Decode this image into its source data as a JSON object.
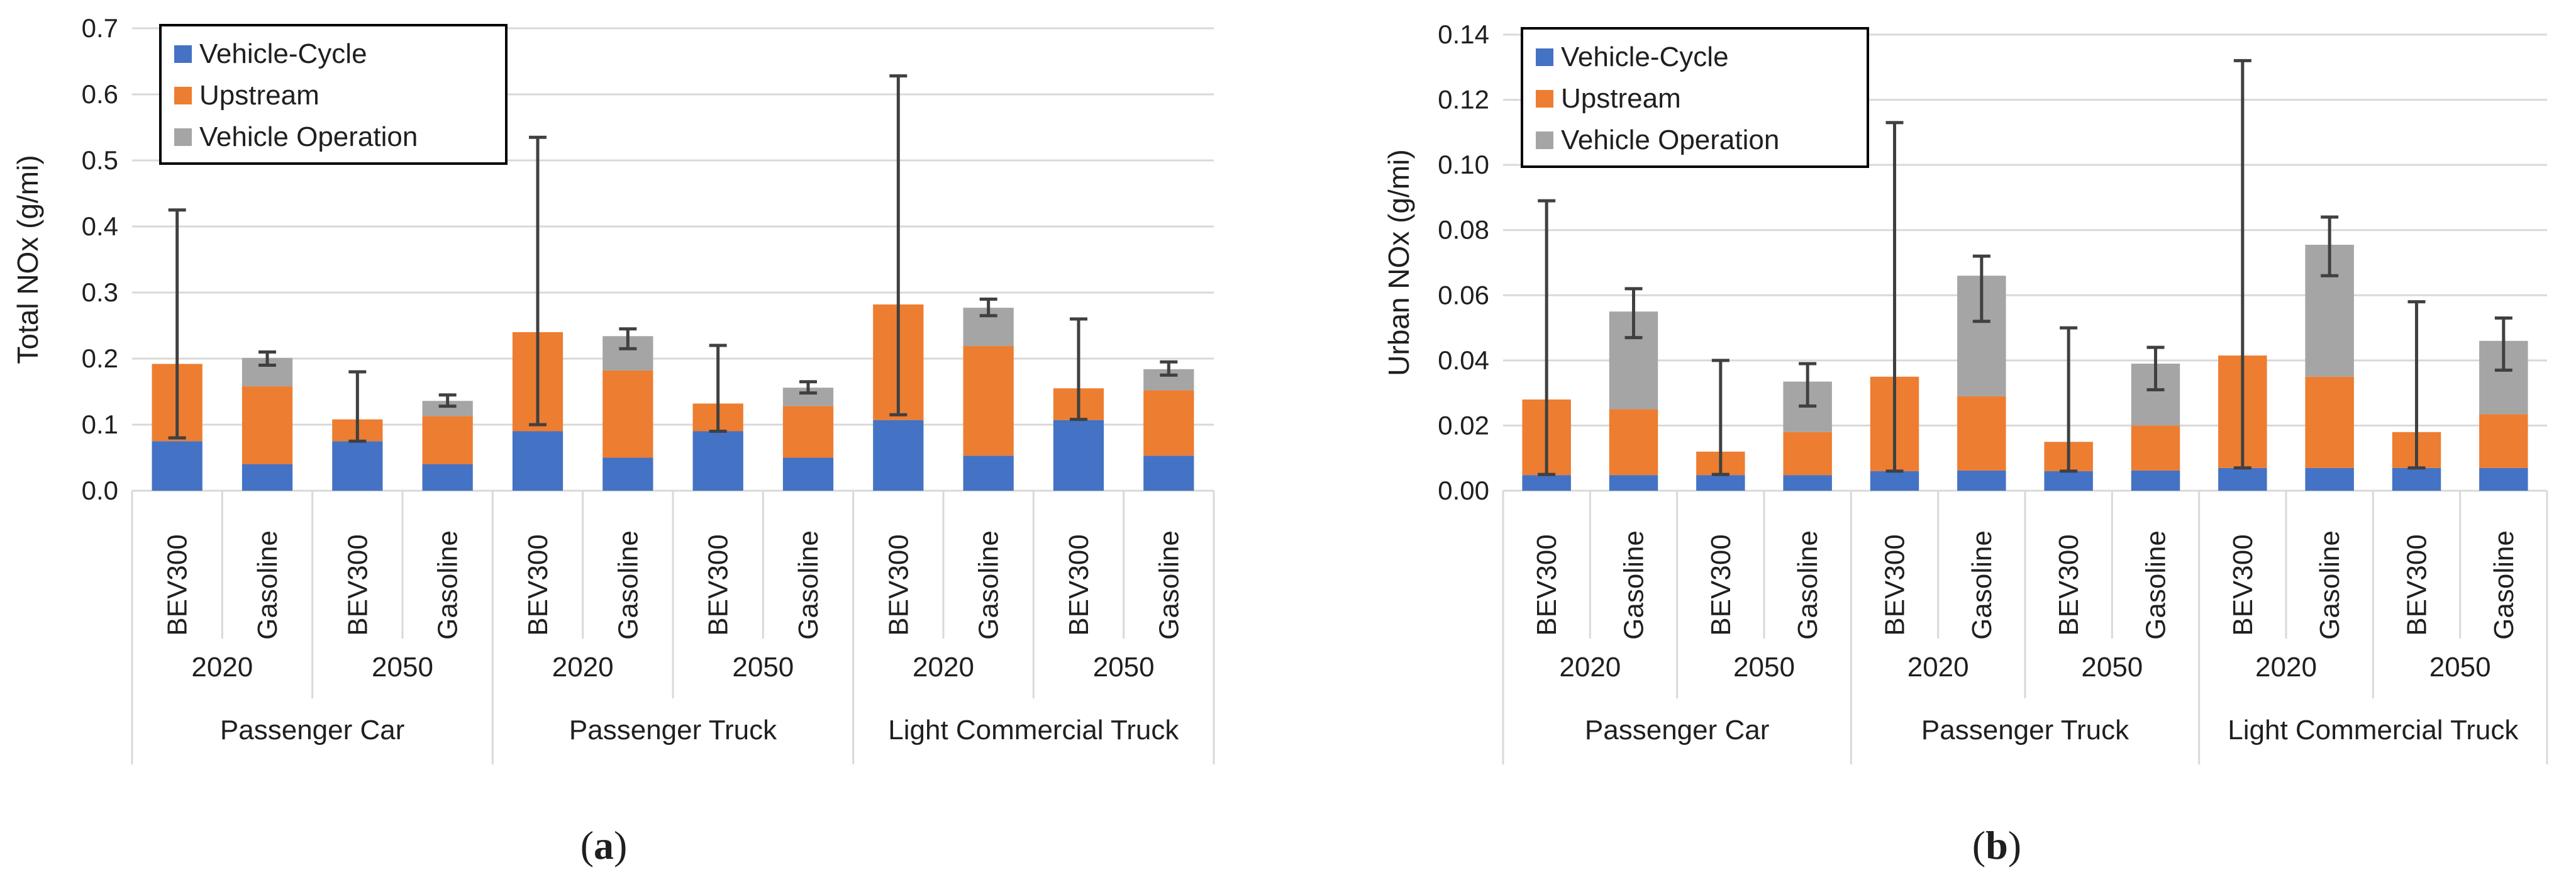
{
  "colors": {
    "vehicle_cycle": "#4472C4",
    "upstream": "#ED7D31",
    "vehicle_operation": "#A5A5A5",
    "grid": "#D9D9D9",
    "error_bar": "#404040"
  },
  "chart_data": [
    {
      "type": "bar",
      "stacked": true,
      "panel_label": "a",
      "ylabel": "Total NOx (g/mi)",
      "ylim": [
        0,
        0.7
      ],
      "yticks": [
        0,
        0.1,
        0.2,
        0.3,
        0.4,
        0.5,
        0.6,
        0.7
      ],
      "ytick_labels": [
        "0.0",
        "0.1",
        "0.2",
        "0.3",
        "0.4",
        "0.5",
        "0.6",
        "0.7"
      ],
      "grid": true,
      "legend": [
        "Vehicle-Cycle",
        "Upstream",
        "Vehicle Operation"
      ],
      "legend_position": "top-left",
      "categories": [
        "BEV300",
        "Gasoline",
        "BEV300",
        "Gasoline",
        "BEV300",
        "Gasoline",
        "BEV300",
        "Gasoline",
        "BEV300",
        "Gasoline",
        "BEV300",
        "Gasoline"
      ],
      "year_groups": [
        "2020",
        "2050",
        "2020",
        "2050",
        "2020",
        "2050"
      ],
      "vehicle_groups": [
        "Passenger Car",
        "Passenger Truck",
        "Light Commercial Truck"
      ],
      "series": [
        {
          "name": "Vehicle-Cycle",
          "values": [
            0.075,
            0.04,
            0.075,
            0.04,
            0.09,
            0.05,
            0.09,
            0.05,
            0.107,
            0.053,
            0.107,
            0.053
          ]
        },
        {
          "name": "Upstream",
          "values": [
            0.117,
            0.118,
            0.033,
            0.073,
            0.15,
            0.132,
            0.042,
            0.078,
            0.175,
            0.166,
            0.048,
            0.099
          ]
        },
        {
          "name": "Vehicle Operation",
          "values": [
            0,
            0.043,
            0,
            0.023,
            0,
            0.052,
            0,
            0.028,
            0,
            0.058,
            0,
            0.032
          ]
        }
      ],
      "error_bars": [
        [
          0.08,
          0.425
        ],
        [
          0.19,
          0.21
        ],
        [
          0.075,
          0.18
        ],
        [
          0.128,
          0.145
        ],
        [
          0.1,
          0.535
        ],
        [
          0.215,
          0.245
        ],
        [
          0.09,
          0.22
        ],
        [
          0.148,
          0.165
        ],
        [
          0.115,
          0.628
        ],
        [
          0.265,
          0.29
        ],
        [
          0.108,
          0.26
        ],
        [
          0.175,
          0.195
        ]
      ]
    },
    {
      "type": "bar",
      "stacked": true,
      "panel_label": "b",
      "ylabel": "Urban NOx (g/mi)",
      "ylim": [
        0,
        0.14
      ],
      "yticks": [
        0,
        0.02,
        0.04,
        0.06,
        0.08,
        0.1,
        0.12,
        0.14
      ],
      "ytick_labels": [
        "0.00",
        "0.02",
        "0.04",
        "0.06",
        "0.08",
        "0.10",
        "0.12",
        "0.14"
      ],
      "grid": true,
      "legend": [
        "Vehicle-Cycle",
        "Upstream",
        "Vehicle Operation"
      ],
      "legend_position": "top-left",
      "categories": [
        "BEV300",
        "Gasoline",
        "BEV300",
        "Gasoline",
        "BEV300",
        "Gasoline",
        "BEV300",
        "Gasoline",
        "BEV300",
        "Gasoline",
        "BEV300",
        "Gasoline"
      ],
      "year_groups": [
        "2020",
        "2050",
        "2020",
        "2050",
        "2020",
        "2050"
      ],
      "vehicle_groups": [
        "Passenger Car",
        "Passenger Truck",
        "Light Commercial Truck"
      ],
      "series": [
        {
          "name": "Vehicle-Cycle",
          "values": [
            0.0048,
            0.0048,
            0.0048,
            0.0048,
            0.006,
            0.0062,
            0.006,
            0.0062,
            0.007,
            0.007,
            0.007,
            0.007
          ]
        },
        {
          "name": "Upstream",
          "values": [
            0.0232,
            0.0202,
            0.0072,
            0.0132,
            0.029,
            0.0228,
            0.009,
            0.0138,
            0.0345,
            0.028,
            0.011,
            0.0165
          ]
        },
        {
          "name": "Vehicle Operation",
          "values": [
            0,
            0.03,
            0,
            0.0155,
            0,
            0.037,
            0,
            0.019,
            0,
            0.0405,
            0,
            0.0225
          ]
        }
      ],
      "error_bars": [
        [
          0.005,
          0.089
        ],
        [
          0.047,
          0.062
        ],
        [
          0.005,
          0.04
        ],
        [
          0.026,
          0.039
        ],
        [
          0.006,
          0.113
        ],
        [
          0.052,
          0.072
        ],
        [
          0.006,
          0.05
        ],
        [
          0.031,
          0.044
        ],
        [
          0.007,
          0.132
        ],
        [
          0.066,
          0.084
        ],
        [
          0.007,
          0.058
        ],
        [
          0.037,
          0.053
        ]
      ]
    }
  ]
}
